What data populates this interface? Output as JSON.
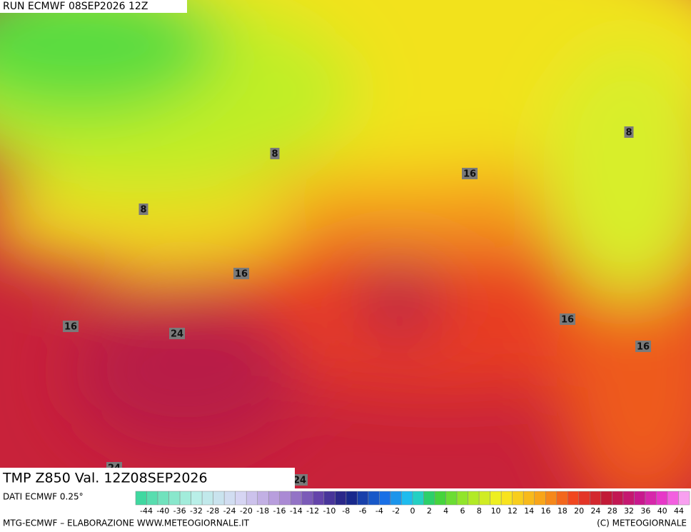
{
  "header": {
    "run": "RUN ECMWF 08SEP2026 12Z"
  },
  "map": {
    "contour_labels": [
      8,
      8,
      8,
      16,
      16,
      16,
      16,
      16,
      24,
      24,
      24
    ]
  },
  "title": "TMP Z850 Val. 12Z08SEP2026",
  "source": "DATI ECMWF 0.25°",
  "colorbar": {
    "labels": [
      -44,
      -40,
      -36,
      -32,
      -28,
      -24,
      -20,
      -18,
      -16,
      -14,
      -12,
      -10,
      -8,
      -6,
      -4,
      -2,
      0,
      2,
      4,
      6,
      8,
      10,
      12,
      14,
      16,
      18,
      20,
      24,
      28,
      32,
      36,
      40,
      44
    ]
  },
  "footer": {
    "left": "MTG-ECMWF – ELABORAZIONE WWW.METEOGIORNALE.IT",
    "right": "(C) METEOGIORNALE"
  }
}
